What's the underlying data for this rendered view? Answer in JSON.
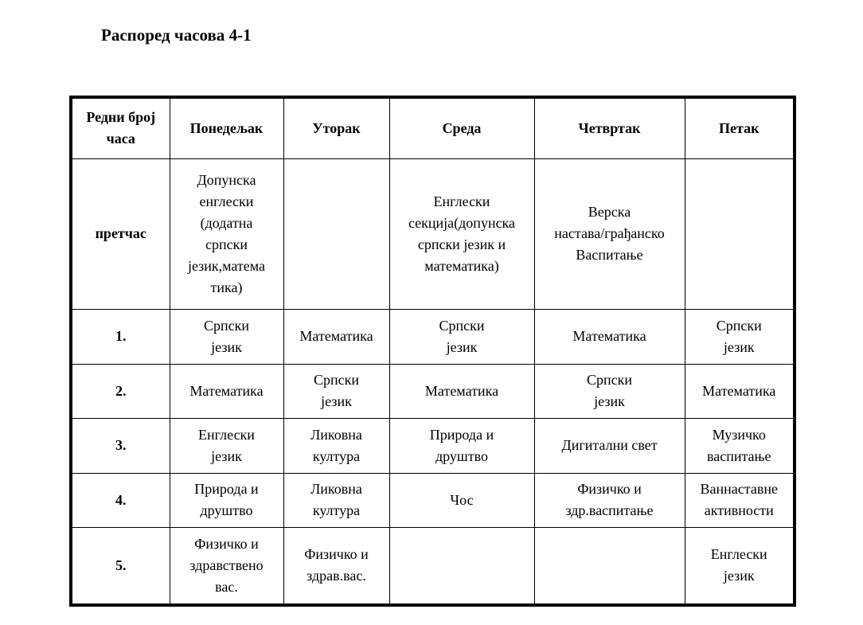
{
  "title": "Распоред часова 4-1",
  "table": {
    "headers": [
      "Редни број\nчаса",
      "Понедељак",
      "Уторак",
      "Среда",
      "Четвртак",
      "Петак"
    ],
    "rows": [
      {
        "label": "претчас",
        "cells": [
          "Допунска\nенглески\n(додатна\nсрпски\nјезик,матема\nтика)",
          "",
          "Енглески\nсекција(допунска\nсрпски језик и\nматематика)",
          "Верска\nнастава/грађанско\nВаспитање",
          ""
        ]
      },
      {
        "label": "1.",
        "cells": [
          "Српски\nјезик",
          "Математика",
          "Српски\nјезик",
          "Математика",
          "Српски\nјезик"
        ]
      },
      {
        "label": "2.",
        "cells": [
          "Математика",
          "Српски\nјезик",
          "Математика",
          "Српски\nјезик",
          "Математика"
        ]
      },
      {
        "label": "3.",
        "cells": [
          "Енглески\nјезик",
          "Ликовна\nкултура",
          "Природа и\nдруштво",
          "Дигитални свет",
          "Музичко\nваспитање"
        ]
      },
      {
        "label": "4.",
        "cells": [
          "Природа и\nдруштво",
          "Ликовна\nкултура",
          "Чос",
          "Физичко и\nздр.васпитање",
          "Ваннаставне\nактивности"
        ]
      },
      {
        "label": "5.",
        "cells": [
          "Физичко и\nздравствено\nвас.",
          "Физичко и\nздрав.вас.",
          "",
          "",
          "Енглески\nјезик"
        ]
      }
    ]
  }
}
